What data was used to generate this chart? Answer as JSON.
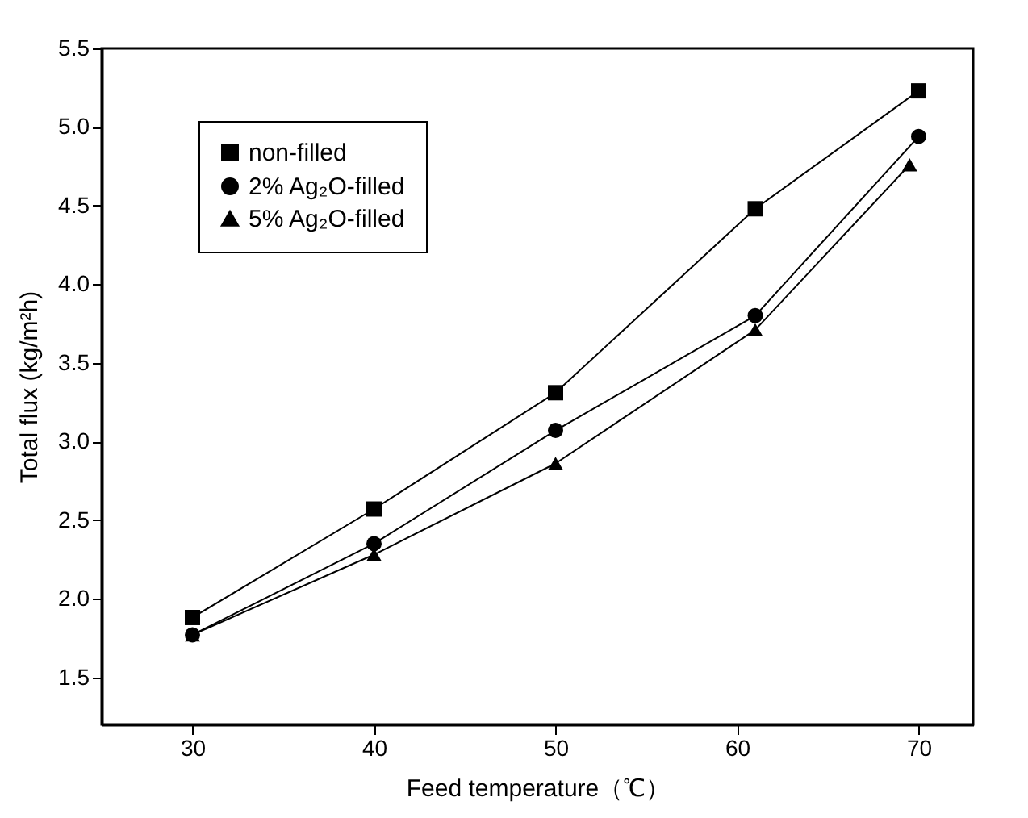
{
  "chart_data": {
    "type": "line",
    "xlabel": "Feed temperature（℃）",
    "ylabel": "Total flux (kg/m²h)",
    "xlim": [
      25,
      73
    ],
    "xticks": [
      30,
      40,
      50,
      60,
      70
    ],
    "ylim": [
      1.2,
      5.5
    ],
    "yticks": [
      1.5,
      {
        "value": 2,
        "label": "2.0"
      },
      2.5,
      {
        "value": 3,
        "label": "3.0"
      },
      3.5,
      {
        "value": 4,
        "label": "4.0"
      },
      4.5,
      {
        "value": 5,
        "label": "5.0"
      },
      5.5
    ],
    "grid": false,
    "legend": "top left",
    "line_style": "solid",
    "series": [
      {
        "name": "non-filled",
        "color": "#000000",
        "marker": "square",
        "x": [
          30,
          40,
          50,
          61,
          70
        ],
        "values": [
          1.88,
          2.57,
          3.31,
          4.48,
          5.23
        ]
      },
      {
        "name": "2% Ag₂O-filled",
        "color": "#000000",
        "marker": "circle",
        "x": [
          30,
          40,
          50,
          61,
          70
        ],
        "values": [
          1.77,
          2.35,
          3.07,
          3.8,
          4.94
        ]
      },
      {
        "name": "5% Ag₂O-filled",
        "color": "#000000",
        "marker": "triangle",
        "x": [
          30,
          40,
          50,
          61,
          69.5
        ],
        "values": [
          1.77,
          2.28,
          2.86,
          3.71,
          4.76
        ]
      }
    ]
  }
}
